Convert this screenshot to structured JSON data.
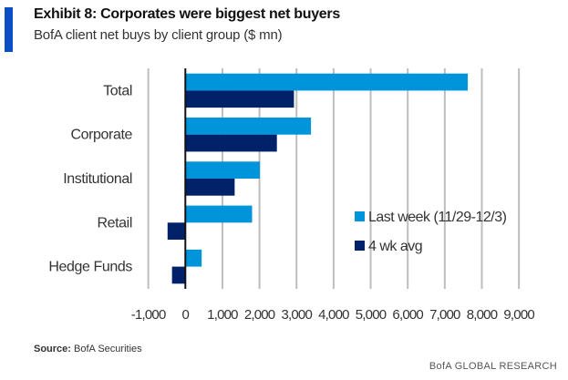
{
  "header": {
    "title": "Exhibit 8: Corporates were biggest net buyers",
    "subtitle": "BofA client net buys by client group ($ mn)"
  },
  "chart_data": {
    "type": "bar",
    "orientation": "horizontal",
    "title": "Exhibit 8: Corporates were biggest net buyers",
    "subtitle": "BofA client net buys by client group ($ mn)",
    "categories": [
      "Total",
      "Corporate",
      "Institutional",
      "Retail",
      "Hedge Funds"
    ],
    "series": [
      {
        "name": "Last week (11/29-12/3)",
        "color": "#0095da",
        "values": [
          7620,
          3390,
          2010,
          1800,
          440
        ]
      },
      {
        "name": "4 wk avg",
        "color": "#012169",
        "values": [
          2930,
          2470,
          1330,
          -480,
          -360
        ]
      }
    ],
    "xlim": [
      -1000,
      9000
    ],
    "xticks": [
      "-1,000",
      "0",
      "1,000",
      "2,000",
      "3,000",
      "4,000",
      "5,000",
      "6,000",
      "7,000",
      "8,000",
      "9,000"
    ],
    "xtick_values": [
      -1000,
      0,
      1000,
      2000,
      3000,
      4000,
      5000,
      6000,
      7000,
      8000,
      9000
    ],
    "grid": "vertical",
    "legend": "right"
  },
  "footer": {
    "source_label": "Source:",
    "source_text": "BofA Securities",
    "brand": "BofA GLOBAL RESEARCH"
  }
}
